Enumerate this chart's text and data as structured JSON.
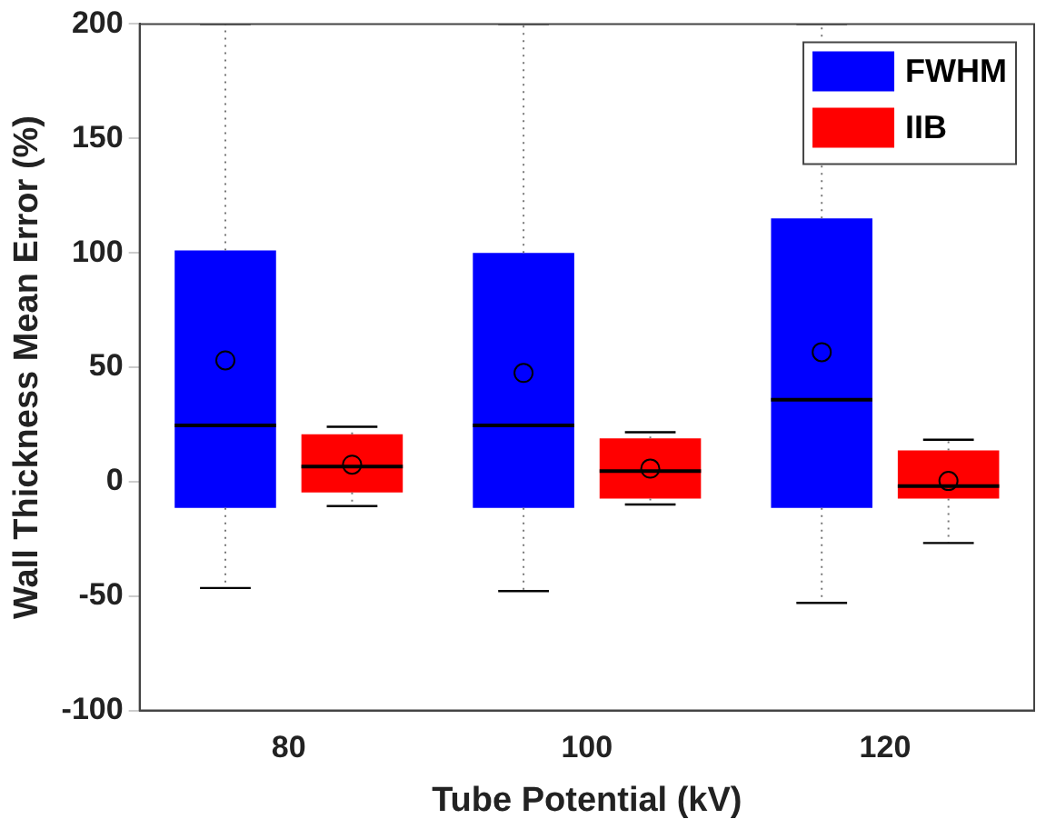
{
  "chart_data": {
    "type": "box",
    "xlabel": "Tube Potential (kV)",
    "ylabel": "Wall Thickness Mean Error (%)",
    "categories": [
      "80",
      "100",
      "120"
    ],
    "ylim": [
      -100,
      200
    ],
    "yticks": [
      -100,
      -50,
      0,
      50,
      100,
      150,
      200
    ],
    "grid": false,
    "legend": "top right",
    "series": [
      {
        "name": "FWHM",
        "color": "#0000ff",
        "boxes": [
          {
            "low": -46.5,
            "q1": -11.5,
            "median": 24.6,
            "q3": 101,
            "high": 200,
            "mean": 53
          },
          {
            "low": -47.8,
            "q1": -11.5,
            "median": 24.6,
            "q3": 100,
            "high": 200,
            "mean": 47.5
          },
          {
            "low": -53,
            "q1": -11.5,
            "median": 35.8,
            "q3": 115,
            "high": 200,
            "mean": 56.6
          }
        ]
      },
      {
        "name": "IIB",
        "color": "#ff0000",
        "boxes": [
          {
            "low": -10.7,
            "q1": -4.7,
            "median": 6.6,
            "q3": 20.7,
            "high": 24,
            "mean": 7.4
          },
          {
            "low": -10,
            "q1": -7.4,
            "median": 4.6,
            "q3": 18.9,
            "high": 21.6,
            "mean": 5.7
          },
          {
            "low": -26.8,
            "q1": -7.4,
            "median": -1.9,
            "q3": 13.7,
            "high": 18.3,
            "mean": 0.3
          }
        ]
      }
    ]
  }
}
